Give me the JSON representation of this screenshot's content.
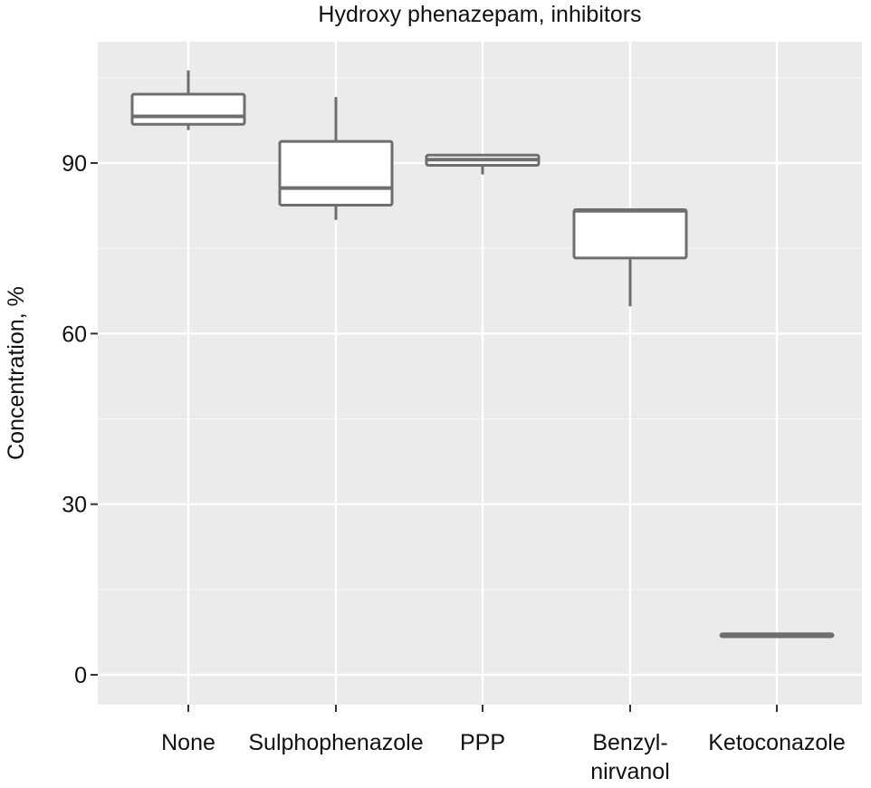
{
  "chart_data": {
    "type": "box",
    "title": "Hydroxy phenazepam, inhibitors",
    "xlabel": "",
    "ylabel": "Concentration, %",
    "ylim": [
      -5.5,
      107
    ],
    "yticks": [
      0,
      30,
      60,
      90
    ],
    "grid": true,
    "legend": "none",
    "colors": {
      "panel": "#ebebeb",
      "grid": "#ffffff",
      "box_fill": "#ffffff",
      "box_line": "#6e6e6e"
    },
    "categories": [
      {
        "label": "None",
        "label_lines": [
          "None"
        ],
        "whisker_low": 95.8,
        "q1": 96.8,
        "median": 98.2,
        "q3": 102.1,
        "whisker_high": 106.3
      },
      {
        "label": "Sulphophenazole",
        "label_lines": [
          "Sulphophenazole"
        ],
        "whisker_low": 80.0,
        "q1": 82.6,
        "median": 85.6,
        "q3": 93.8,
        "whisker_high": 101.6
      },
      {
        "label": "PPP",
        "label_lines": [
          "PPP"
        ],
        "whisker_low": 88.0,
        "q1": 89.6,
        "median": 90.6,
        "q3": 91.4,
        "whisker_high": 91.4
      },
      {
        "label": "Benzyl-nirvanol",
        "label_lines": [
          "Benzyl-",
          "nirvanol"
        ],
        "whisker_low": 64.8,
        "q1": 73.3,
        "median": 81.6,
        "q3": 81.8,
        "whisker_high": 81.8
      },
      {
        "label": "Ketoconazole",
        "label_lines": [
          "Ketoconazole"
        ],
        "whisker_low": 6.7,
        "q1": 6.7,
        "median": 6.9,
        "q3": 7.2,
        "whisker_high": 7.2
      }
    ]
  }
}
